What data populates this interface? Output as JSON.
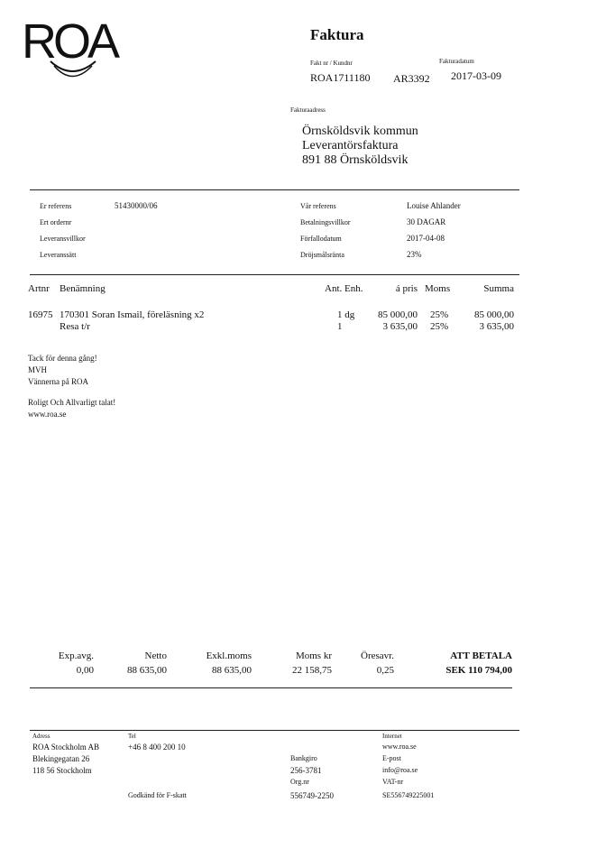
{
  "logo": {
    "text": "ROA"
  },
  "header": {
    "title": "Faktura",
    "fakt_label": "Fakt nr / Kundnr",
    "fakt_nr": "ROA1711180",
    "kundnr": "AR3392",
    "date_label": "Fakturadatum",
    "date": "2017-03-09"
  },
  "address": {
    "label": "Fakturaadress",
    "lines": [
      "Örnsköldsvik kommun",
      "Leverantörsfaktura",
      "891 88 Örnsköldsvik"
    ]
  },
  "refs": {
    "left": [
      {
        "label": "Er referens",
        "value": "51430000/06"
      },
      {
        "label": "Ert ordernr",
        "value": ""
      },
      {
        "label": "Leveransvillkor",
        "value": ""
      },
      {
        "label": "Leveranssätt",
        "value": ""
      }
    ],
    "right": [
      {
        "label": "Vår referens",
        "value": "Louise Ahlander"
      },
      {
        "label": "Betalningsvillkor",
        "value": "30 DAGAR"
      },
      {
        "label": "Förfallodatum",
        "value": "2017-04-08"
      },
      {
        "label": "Dröjsmålsränta",
        "value": "23%"
      }
    ]
  },
  "items": {
    "headers": {
      "artnr": "Artnr",
      "name": "Benämning",
      "qty": "Ant. Enh.",
      "price": "á pris",
      "vat": "Moms",
      "sum": "Summa"
    },
    "rows": [
      {
        "artnr": "16975",
        "name": "170301 Soran Ismail, föreläsning x2",
        "qty": "1 dg",
        "price": "85 000,00",
        "vat": "25%",
        "sum": "85 000,00"
      },
      {
        "artnr": "",
        "name": "Resa t/r",
        "qty": "1",
        "price": "3 635,00",
        "vat": "25%",
        "sum": "3 635,00"
      }
    ]
  },
  "notes": [
    "Tack för denna gång!",
    "MVH",
    "Vännerna på ROA",
    "Roligt Och Allvarligt talat!",
    "www.roa.se"
  ],
  "totals": {
    "exp_label": "Exp.avg.",
    "exp": "0,00",
    "netto_label": "Netto",
    "netto": "88 635,00",
    "exkl_label": "Exkl.moms",
    "exkl": "88 635,00",
    "moms_label": "Moms kr",
    "moms": "22 158,75",
    "ores_label": "Öresavr.",
    "ores": "0,25",
    "pay_label": "ATT BETALA",
    "pay": "SEK 110 794,00"
  },
  "footer": {
    "adress_label": "Adress",
    "adress": [
      "ROA Stockholm AB",
      "Blekingegatan 26",
      "118 56 Stockholm"
    ],
    "tel_label": "Tel",
    "tel": "+46 8 400 200 10",
    "fskatt": "Godkänd för F-skatt",
    "bankgiro_label": "Bankgiro",
    "bankgiro": "256-3781",
    "orgnr_label": "Org.nr",
    "orgnr": "556749-2250",
    "internet_label": "Internet",
    "internet": "www.roa.se",
    "epost_label": "E-post",
    "epost": "info@roa.se",
    "vat_label": "VAT-nr",
    "vat": "SE556749225001"
  }
}
